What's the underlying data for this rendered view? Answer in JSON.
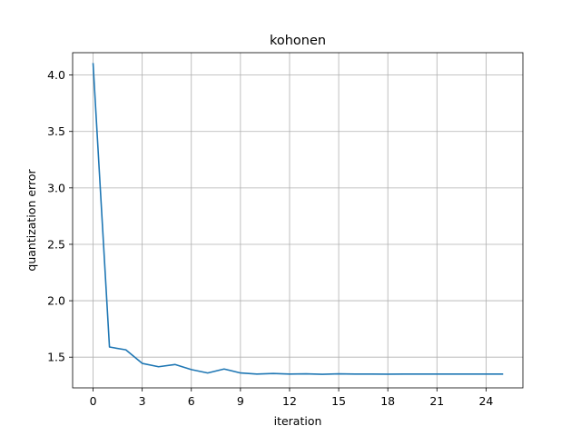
{
  "chart_data": {
    "type": "line",
    "title": "kohonen",
    "xlabel": "iteration",
    "ylabel": "quantization error",
    "xlim": [
      -1.25,
      26.25
    ],
    "ylim": [
      1.228,
      4.198
    ],
    "xticks": [
      0,
      3,
      6,
      9,
      12,
      15,
      18,
      21,
      24
    ],
    "yticks": [
      1.5,
      2.0,
      2.5,
      3.0,
      3.5,
      4.0
    ],
    "ytick_labels": [
      "1.5",
      "2.0",
      "2.5",
      "3.0",
      "3.5",
      "4.0"
    ],
    "grid": true,
    "line_color": "#1f77b4",
    "grid_color": "#b0b0b0",
    "series": [
      {
        "x": [
          0,
          1,
          2,
          3,
          4,
          5,
          6,
          7,
          8,
          9,
          10,
          11,
          12,
          13,
          14,
          15,
          16,
          17,
          18,
          19,
          20,
          21,
          22,
          23,
          24,
          25
        ],
        "values": [
          4.1,
          1.59,
          1.565,
          1.445,
          1.415,
          1.435,
          1.39,
          1.36,
          1.395,
          1.36,
          1.35,
          1.355,
          1.35,
          1.352,
          1.348,
          1.352,
          1.35,
          1.35,
          1.349,
          1.35,
          1.35,
          1.35,
          1.35,
          1.35,
          1.35,
          1.35
        ]
      }
    ]
  }
}
